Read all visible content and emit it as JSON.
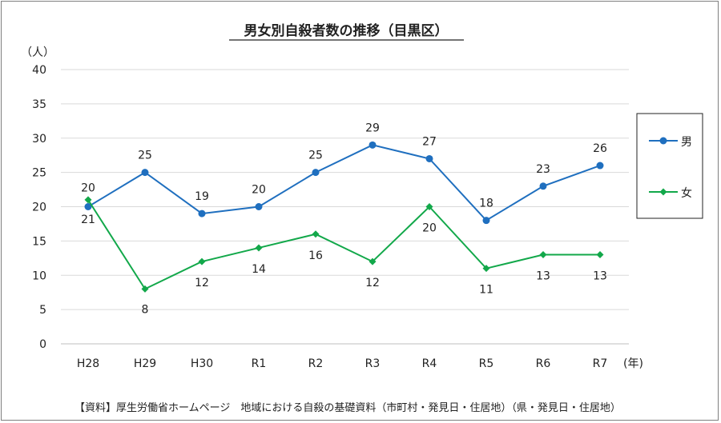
{
  "chart_data": {
    "type": "line",
    "title": "男女別自殺者数の推移（目黒区）",
    "ylabel": "（人）",
    "xlabel": "(年)",
    "ylim": [
      0,
      40
    ],
    "yticks": [
      0,
      5,
      10,
      15,
      20,
      25,
      30,
      35,
      40
    ],
    "grid": true,
    "legend": "right",
    "categories": [
      "H28",
      "H29",
      "H30",
      "R1",
      "R2",
      "R3",
      "R4",
      "R5",
      "R6",
      "R7"
    ],
    "series": [
      {
        "name": "男",
        "color": "#1f6fbf",
        "marker": "circle",
        "values": [
          20,
          25,
          19,
          20,
          25,
          29,
          27,
          18,
          23,
          26
        ],
        "labels": [
          "20",
          "25",
          "19",
          "20",
          "25",
          "29",
          "27",
          "18",
          "23",
          "26"
        ]
      },
      {
        "name": "女",
        "color": "#12a84a",
        "marker": "diamond",
        "values": [
          21,
          8,
          12,
          14,
          16,
          12,
          20,
          11,
          13,
          13
        ],
        "labels": [
          "21",
          "8",
          "12",
          "14",
          "16",
          "12",
          "20",
          "11",
          "13",
          "13"
        ]
      }
    ],
    "source": "【資料】厚生労働省ホームページ　地域における自殺の基礎資料（市町村・発見日・住居地）（県・発見日・住居地）"
  }
}
